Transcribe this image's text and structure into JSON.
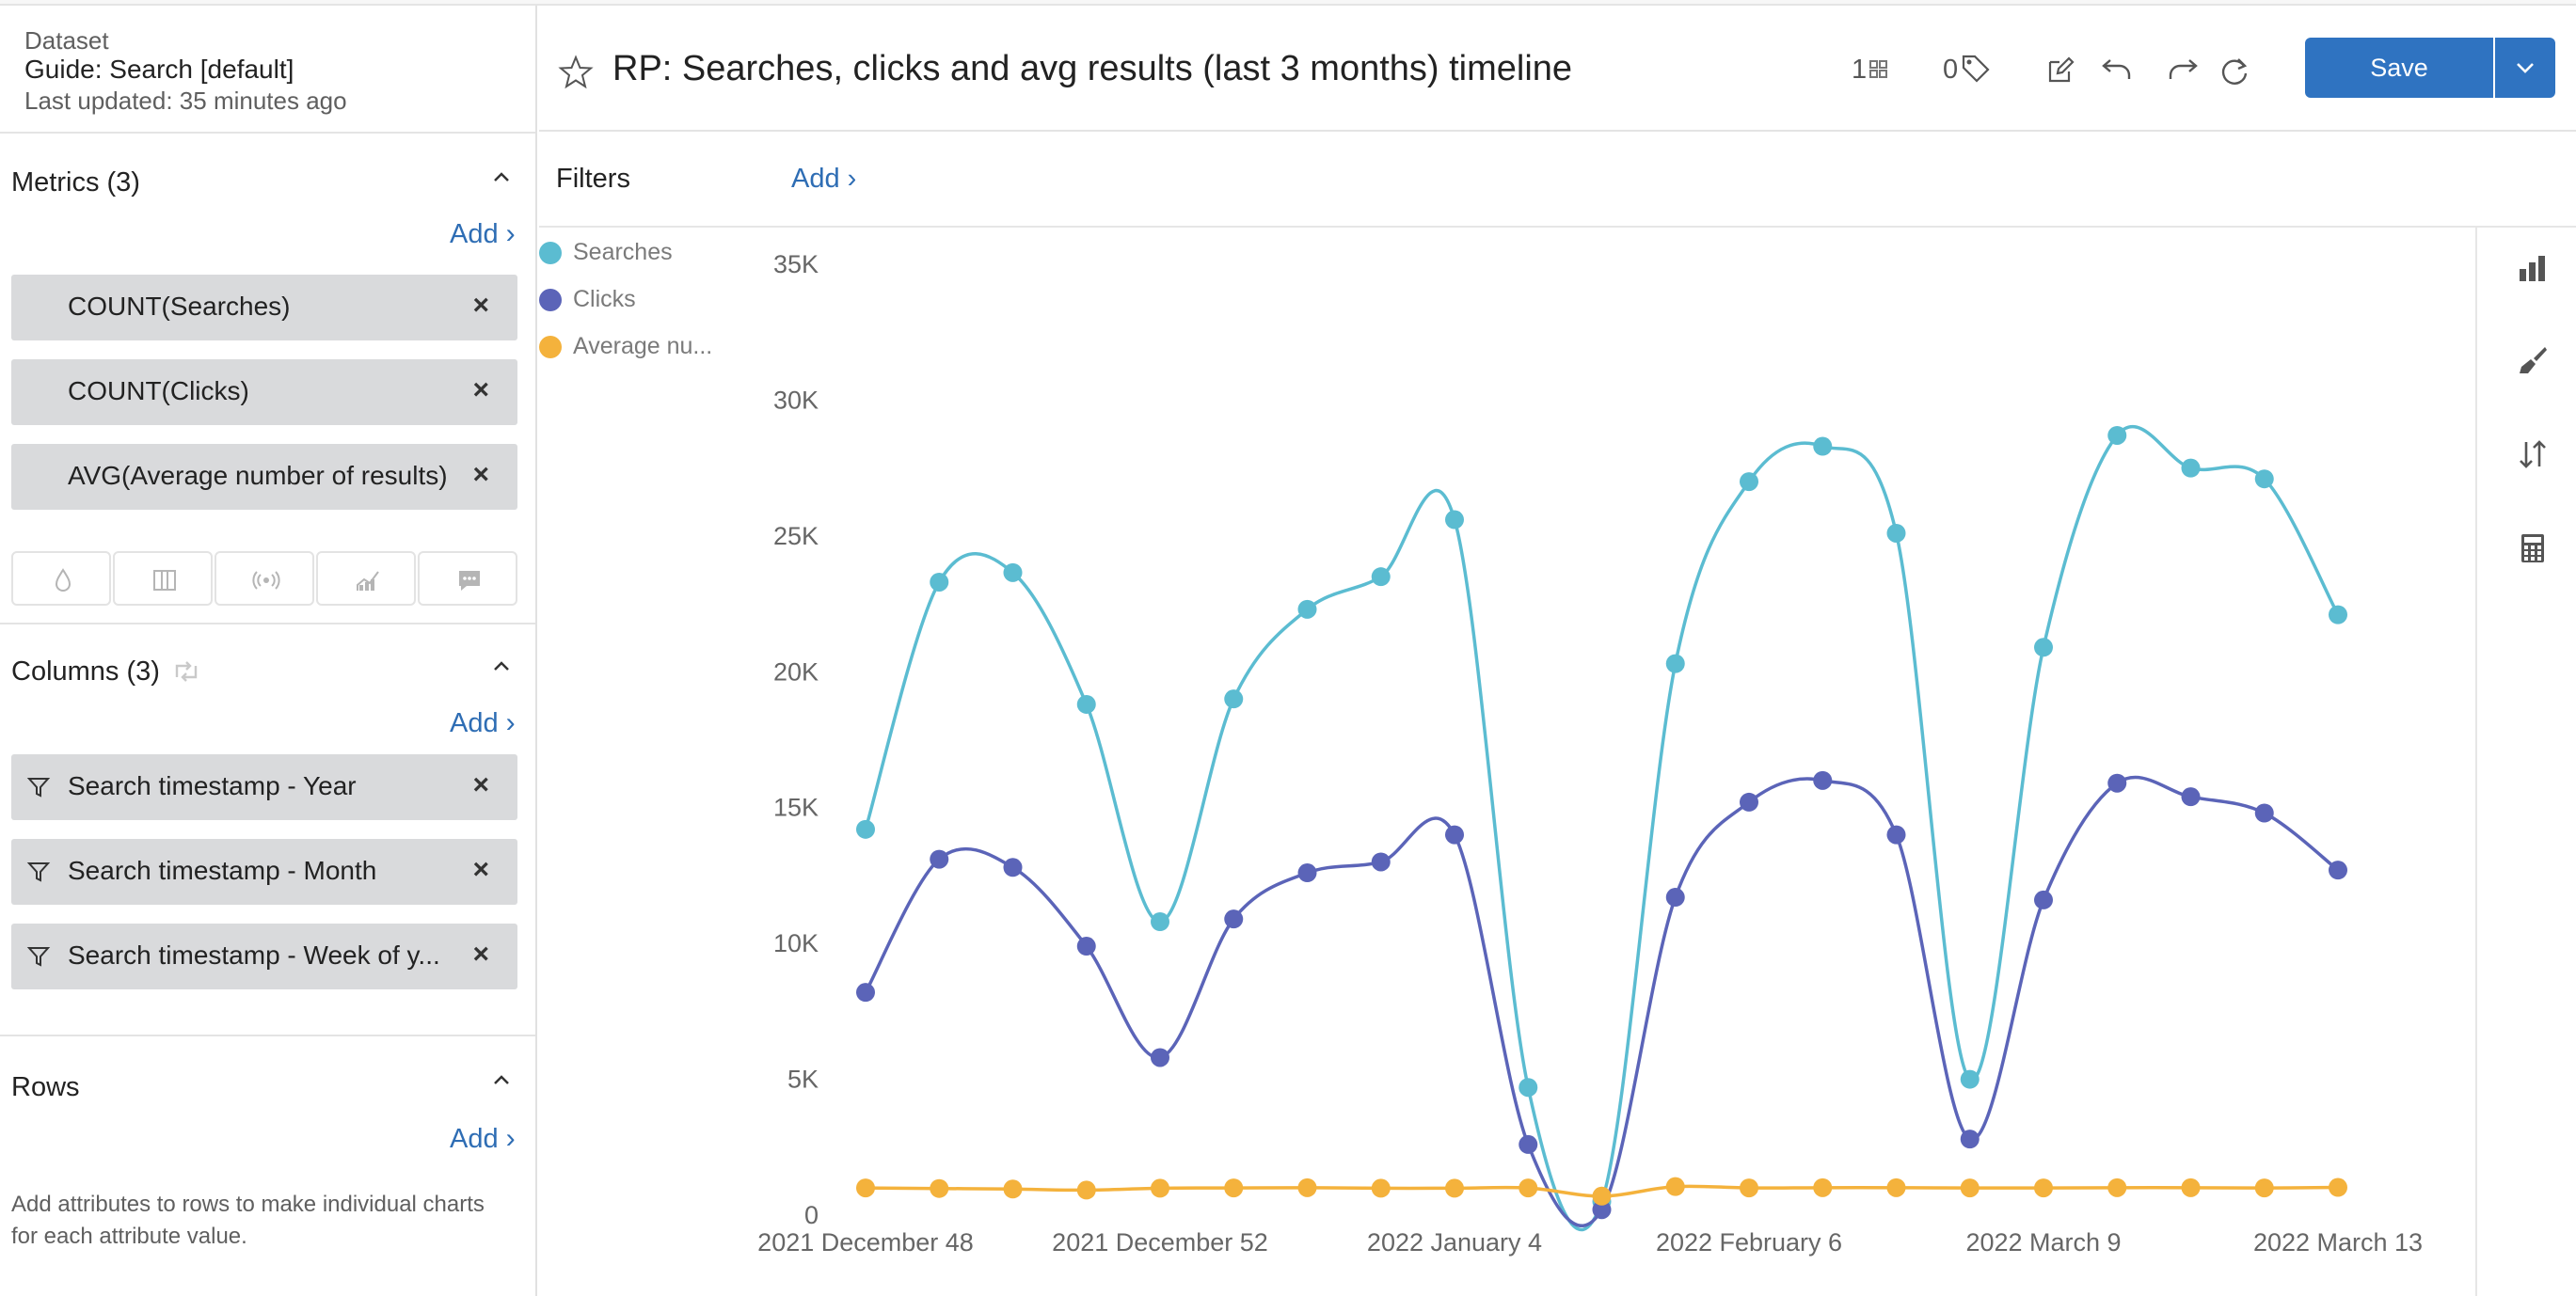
{
  "dataset": {
    "label": "Dataset",
    "name": "Guide: Search [default]",
    "updated": "Last updated: 35 minutes ago"
  },
  "metrics": {
    "title": "Metrics (3)",
    "add_label": "Add",
    "items": [
      {
        "label": "COUNT(Searches)"
      },
      {
        "label": "COUNT(Clicks)"
      },
      {
        "label": "AVG(Average number of results)"
      }
    ],
    "remove_glyph": "×"
  },
  "columns": {
    "title": "Columns (3)",
    "add_label": "Add",
    "items": [
      {
        "label": "Search timestamp - Year"
      },
      {
        "label": "Search timestamp - Month"
      },
      {
        "label": "Search timestamp - Week of y..."
      }
    ]
  },
  "rows": {
    "title": "Rows",
    "add_label": "Add",
    "help": "Add attributes to rows to make individual charts for each attribute value."
  },
  "header": {
    "title": "RP: Searches, clicks and avg results (last 3 months) timeline",
    "views_count": "1",
    "tags_count": "0",
    "save_label": "Save"
  },
  "filters": {
    "label": "Filters",
    "add_label": "Add"
  },
  "icons": {
    "left_toolbar": [
      "drop-icon",
      "column-icon",
      "broadcast-icon",
      "area-chart-icon",
      "comment-icon"
    ],
    "right_toolbar": [
      "bar-chart-icon",
      "paintbrush-icon",
      "sort-icon",
      "calculator-icon"
    ]
  },
  "colors": {
    "accent": "#2f73c1",
    "link": "#2e6db4",
    "searches": "#5bbcd1",
    "clicks": "#5b64b8",
    "avg": "#f4b23c"
  },
  "chart_data": {
    "type": "line",
    "title": "",
    "xlabel": "",
    "ylabel": "",
    "ylim": [
      0,
      35000
    ],
    "yticks": [
      "0",
      "5K",
      "10K",
      "15K",
      "20K",
      "25K",
      "30K",
      "35K"
    ],
    "ytick_values": [
      0,
      5000,
      10000,
      15000,
      20000,
      25000,
      30000,
      35000
    ],
    "x_tick_labels": [
      "2021 December 48",
      "2021 December 52",
      "2022 January 4",
      "2022 February 6",
      "2022 March 9",
      "2022 March 13"
    ],
    "x_tick_indices": [
      0,
      4,
      8,
      12,
      16,
      20
    ],
    "legend_position": "top-left",
    "series": [
      {
        "name": "Searches",
        "color": "#5bbcd1",
        "values": [
          14200,
          23300,
          23650,
          18800,
          10800,
          19000,
          22300,
          23500,
          25600,
          4700,
          500,
          20300,
          27000,
          28300,
          25100,
          5000,
          20900,
          28700,
          27500,
          27100,
          22100
        ]
      },
      {
        "name": "Clicks",
        "color": "#5b64b8",
        "values": [
          8200,
          13100,
          12800,
          9900,
          5800,
          10900,
          12600,
          13000,
          14000,
          2600,
          200,
          11700,
          15200,
          16000,
          14000,
          2800,
          11600,
          15900,
          15400,
          14800,
          12700
        ]
      },
      {
        "name": "Average nu...",
        "color": "#f4b23c",
        "values": [
          1000,
          980,
          960,
          920,
          990,
          1000,
          1010,
          990,
          990,
          1000,
          700,
          1050,
          1000,
          1010,
          1010,
          1000,
          1000,
          1010,
          1010,
          1000,
          1020
        ]
      }
    ]
  }
}
